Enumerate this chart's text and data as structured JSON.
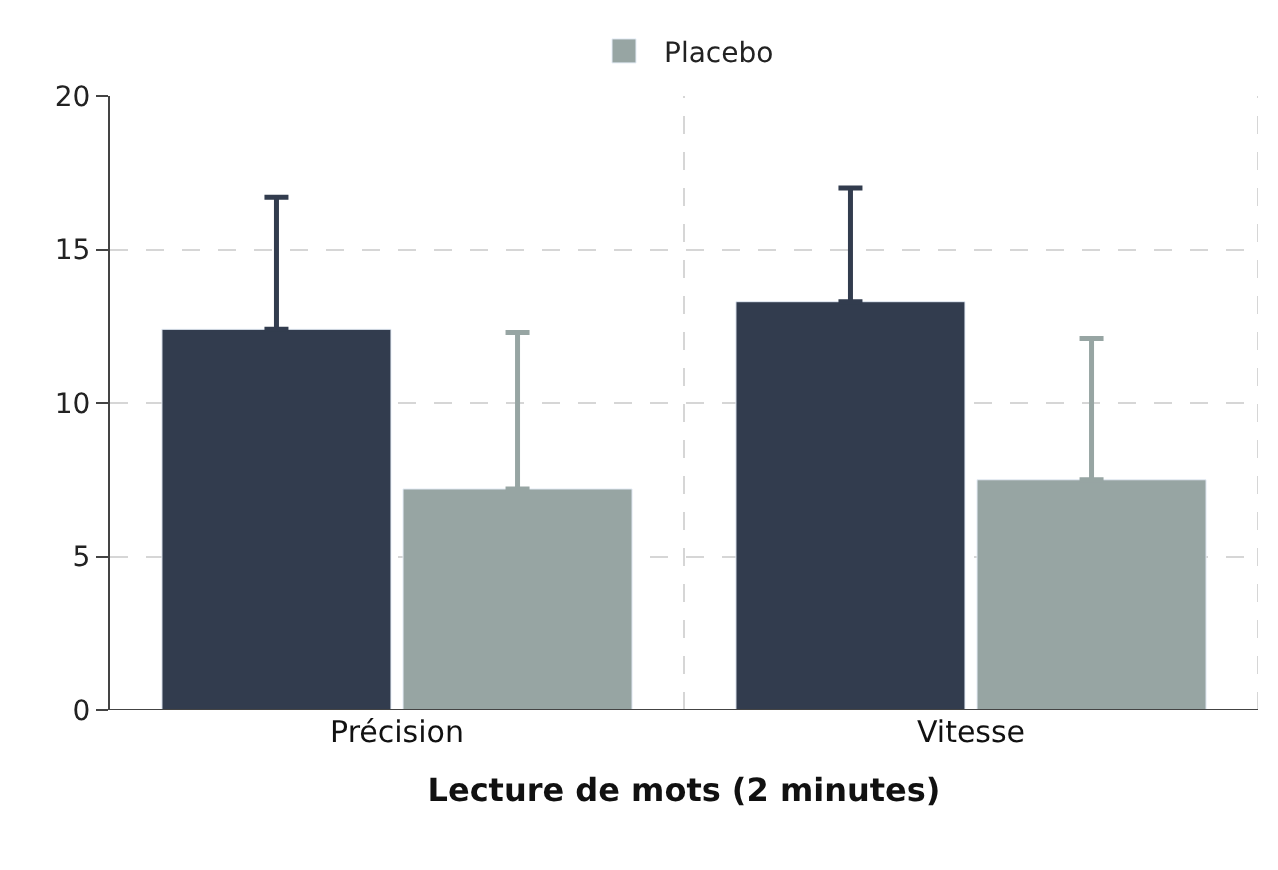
{
  "chart_data": {
    "type": "bar",
    "xlabel": "Lecture de mots (2 minutes)",
    "categories": [
      "Précision",
      "Vitesse"
    ],
    "series": [
      {
        "color": "#323c4e",
        "values": [
          12.4,
          13.3
        ],
        "errors": [
          [
            12.4,
            16.7
          ],
          [
            13.3,
            17.0
          ]
        ]
      },
      {
        "name": "Placebo",
        "color": "#97a5a3",
        "values": [
          7.2,
          7.5
        ],
        "errors": [
          [
            7.2,
            12.3
          ],
          [
            7.5,
            12.1
          ]
        ]
      }
    ],
    "ylim": [
      0,
      20
    ],
    "yticks": [
      0,
      5,
      10,
      15,
      20
    ],
    "grid": true,
    "legend": "top"
  }
}
